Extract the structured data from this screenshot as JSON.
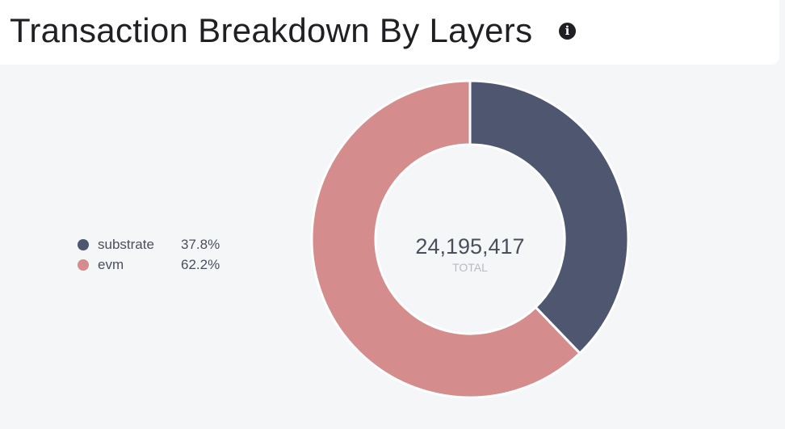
{
  "header": {
    "title": "Transaction Breakdown By Layers",
    "info_icon": "info-icon"
  },
  "chart_data": {
    "type": "pie",
    "donut": true,
    "title": "Transaction Breakdown By Layers",
    "center_value": "24,195,417",
    "center_label": "TOTAL",
    "legend_position": "left",
    "series": [
      {
        "name": "substrate",
        "percent_label": "37.8%",
        "value": 37.8,
        "color": "#4f566f"
      },
      {
        "name": "evm",
        "percent_label": "62.2%",
        "value": 62.2,
        "color": "#d48c8c"
      }
    ]
  }
}
